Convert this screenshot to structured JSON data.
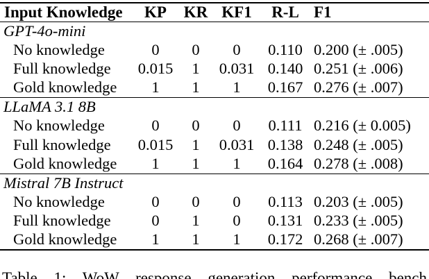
{
  "table": {
    "headers": {
      "input": "Input Knowledge",
      "kp": "KP",
      "kr": "KR",
      "kf1": "KF1",
      "rl": "R-L",
      "f1": "F1"
    },
    "sections": [
      {
        "model": "GPT-4o-mini",
        "rows": [
          {
            "label": "No knowledge",
            "kp": "0",
            "kr": "0",
            "kf1": "0",
            "rl": "0.110",
            "f1": "0.200 (± .005)"
          },
          {
            "label": "Full knowledge",
            "kp": "0.015",
            "kr": "1",
            "kf1": "0.031",
            "rl": "0.140",
            "f1": "0.251 (± .006)"
          },
          {
            "label": "Gold knowledge",
            "kp": "1",
            "kr": "1",
            "kf1": "1",
            "rl": "0.167",
            "f1": "0.276 (± .007)"
          }
        ]
      },
      {
        "model": "LLaMA 3.1 8B",
        "rows": [
          {
            "label": "No knowledge",
            "kp": "0",
            "kr": "0",
            "kf1": "0",
            "rl": "0.111",
            "f1": "0.216 (± 0.005)"
          },
          {
            "label": "Full knowledge",
            "kp": "0.015",
            "kr": "1",
            "kf1": "0.031",
            "rl": "0.138",
            "f1": "0.248 (± .005)"
          },
          {
            "label": "Gold knowledge",
            "kp": "1",
            "kr": "1",
            "kf1": "1",
            "rl": "0.164",
            "f1": "0.278 (± .008)"
          }
        ]
      },
      {
        "model": "Mistral 7B Instruct",
        "rows": [
          {
            "label": "No knowledge",
            "kp": "0",
            "kr": "0",
            "kf1": "0",
            "rl": "0.113",
            "f1": "0.203 (± .005)"
          },
          {
            "label": "Full knowledge",
            "kp": "0",
            "kr": "1",
            "kf1": "0",
            "rl": "0.131",
            "f1": "0.233 (± .005)"
          },
          {
            "label": "Gold knowledge",
            "kp": "1",
            "kr": "1",
            "kf1": "1",
            "rl": "0.172",
            "f1": "0.268 (± .007)"
          }
        ]
      }
    ]
  },
  "caption": "Table 1: WoW response generation performance bench"
}
